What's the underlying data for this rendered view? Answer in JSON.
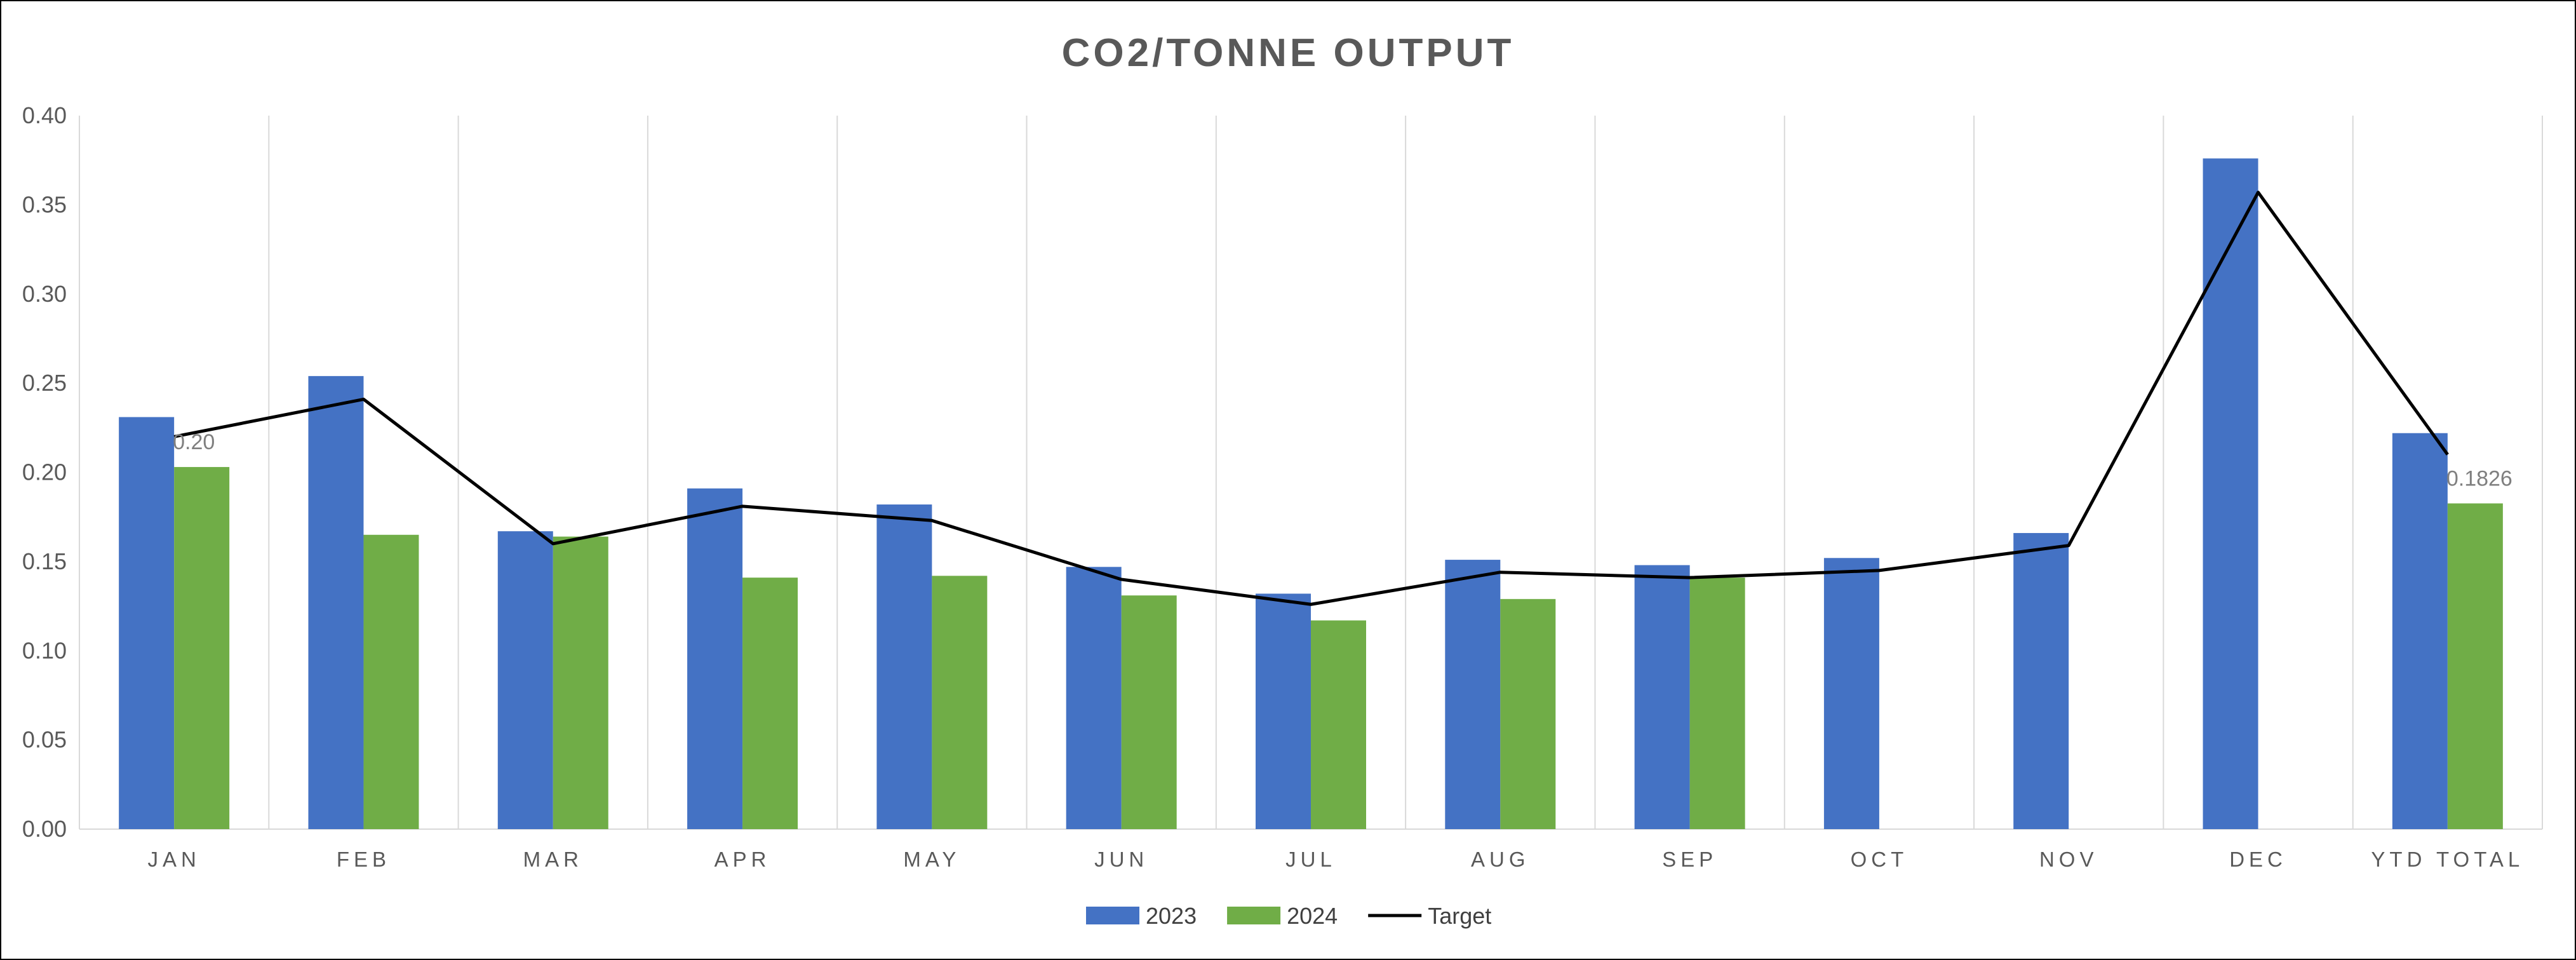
{
  "chart_data": {
    "type": "bar",
    "title": "CO2/TONNE OUTPUT",
    "categories": [
      "JAN",
      "FEB",
      "MAR",
      "APR",
      "MAY",
      "JUN",
      "JUL",
      "AUG",
      "SEP",
      "OCT",
      "NOV",
      "DEC",
      "YTD TOTAL"
    ],
    "ylim": [
      0,
      0.4
    ],
    "yticks": [
      "0.00",
      "0.05",
      "0.10",
      "0.15",
      "0.20",
      "0.25",
      "0.30",
      "0.35",
      "0.40"
    ],
    "grid": "vertical",
    "legend_position": "bottom",
    "series": [
      {
        "name": "2023",
        "kind": "bar",
        "color": "#4472c4",
        "values": [
          0.231,
          0.254,
          0.167,
          0.191,
          0.182,
          0.147,
          0.132,
          0.151,
          0.148,
          0.152,
          0.166,
          0.376,
          0.222
        ]
      },
      {
        "name": "2024",
        "kind": "bar",
        "color": "#70ad47",
        "values": [
          0.203,
          0.165,
          0.164,
          0.141,
          0.142,
          0.131,
          0.117,
          0.129,
          0.141,
          null,
          null,
          null,
          0.1826
        ]
      },
      {
        "name": "Target",
        "kind": "line",
        "color": "#000000",
        "values": [
          0.22,
          0.241,
          0.16,
          0.181,
          0.173,
          0.14,
          0.126,
          0.144,
          0.141,
          0.145,
          0.159,
          0.357,
          0.21
        ]
      }
    ],
    "data_labels": [
      {
        "text": "0.20",
        "series": 1,
        "category": 0
      },
      {
        "text": "0.1826",
        "series": 1,
        "category": 12
      }
    ]
  }
}
